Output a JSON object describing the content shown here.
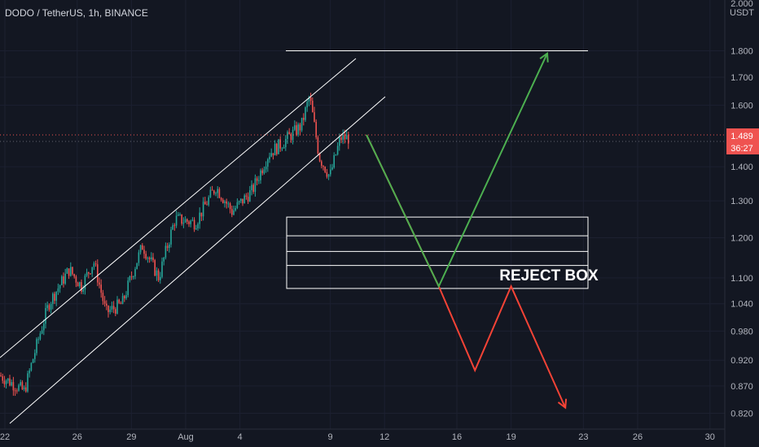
{
  "header": {
    "symbol_title": "DODO / TetherUS, 1h, BINANCE"
  },
  "y_axis": {
    "currency": "USDT"
  },
  "current_price": {
    "value": "1.489",
    "countdown": "36:27"
  },
  "annotation": {
    "reject_box_label": "REJECT BOX"
  },
  "colors": {
    "background": "#131722",
    "up": "#26a69a",
    "down": "#ef5350",
    "price_tag": "#ef5350",
    "green_path": "#4caf50",
    "red_path": "#f44336",
    "lines": "#ffffff"
  },
  "chart_data": {
    "type": "candlestick",
    "title": "DODO / TetherUS, 1h, BINANCE",
    "y_scale": "log",
    "y_ticks": [
      "2.000",
      "1.800",
      "1.700",
      "1.600",
      "1.400",
      "1.300",
      "1.200",
      "1.100",
      "1.040",
      "0.980",
      "0.920",
      "0.870",
      "0.820"
    ],
    "x_ticks": [
      "22",
      "26",
      "29",
      "Aug",
      "4",
      "9",
      "12",
      "16",
      "19",
      "23",
      "26",
      "30"
    ],
    "ylim": [
      0.78,
      2.02
    ],
    "reject_box_levels": [
      1.255,
      1.205,
      1.165,
      1.13,
      1.075
    ],
    "target_level": 1.8,
    "last_price": 1.489,
    "projected_paths": {
      "green": [
        {
          "x": "Aug 10",
          "y": 1.5
        },
        {
          "x": "Aug 14",
          "y": 1.08
        },
        {
          "x": "Aug 20",
          "y": 1.79
        }
      ],
      "red": [
        {
          "x": "Aug 10",
          "y": 1.5
        },
        {
          "x": "Aug 14",
          "y": 1.08
        },
        {
          "x": "Aug 16",
          "y": 0.9
        },
        {
          "x": "Aug 18",
          "y": 1.08
        },
        {
          "x": "Aug 21",
          "y": 0.83
        }
      ]
    }
  }
}
